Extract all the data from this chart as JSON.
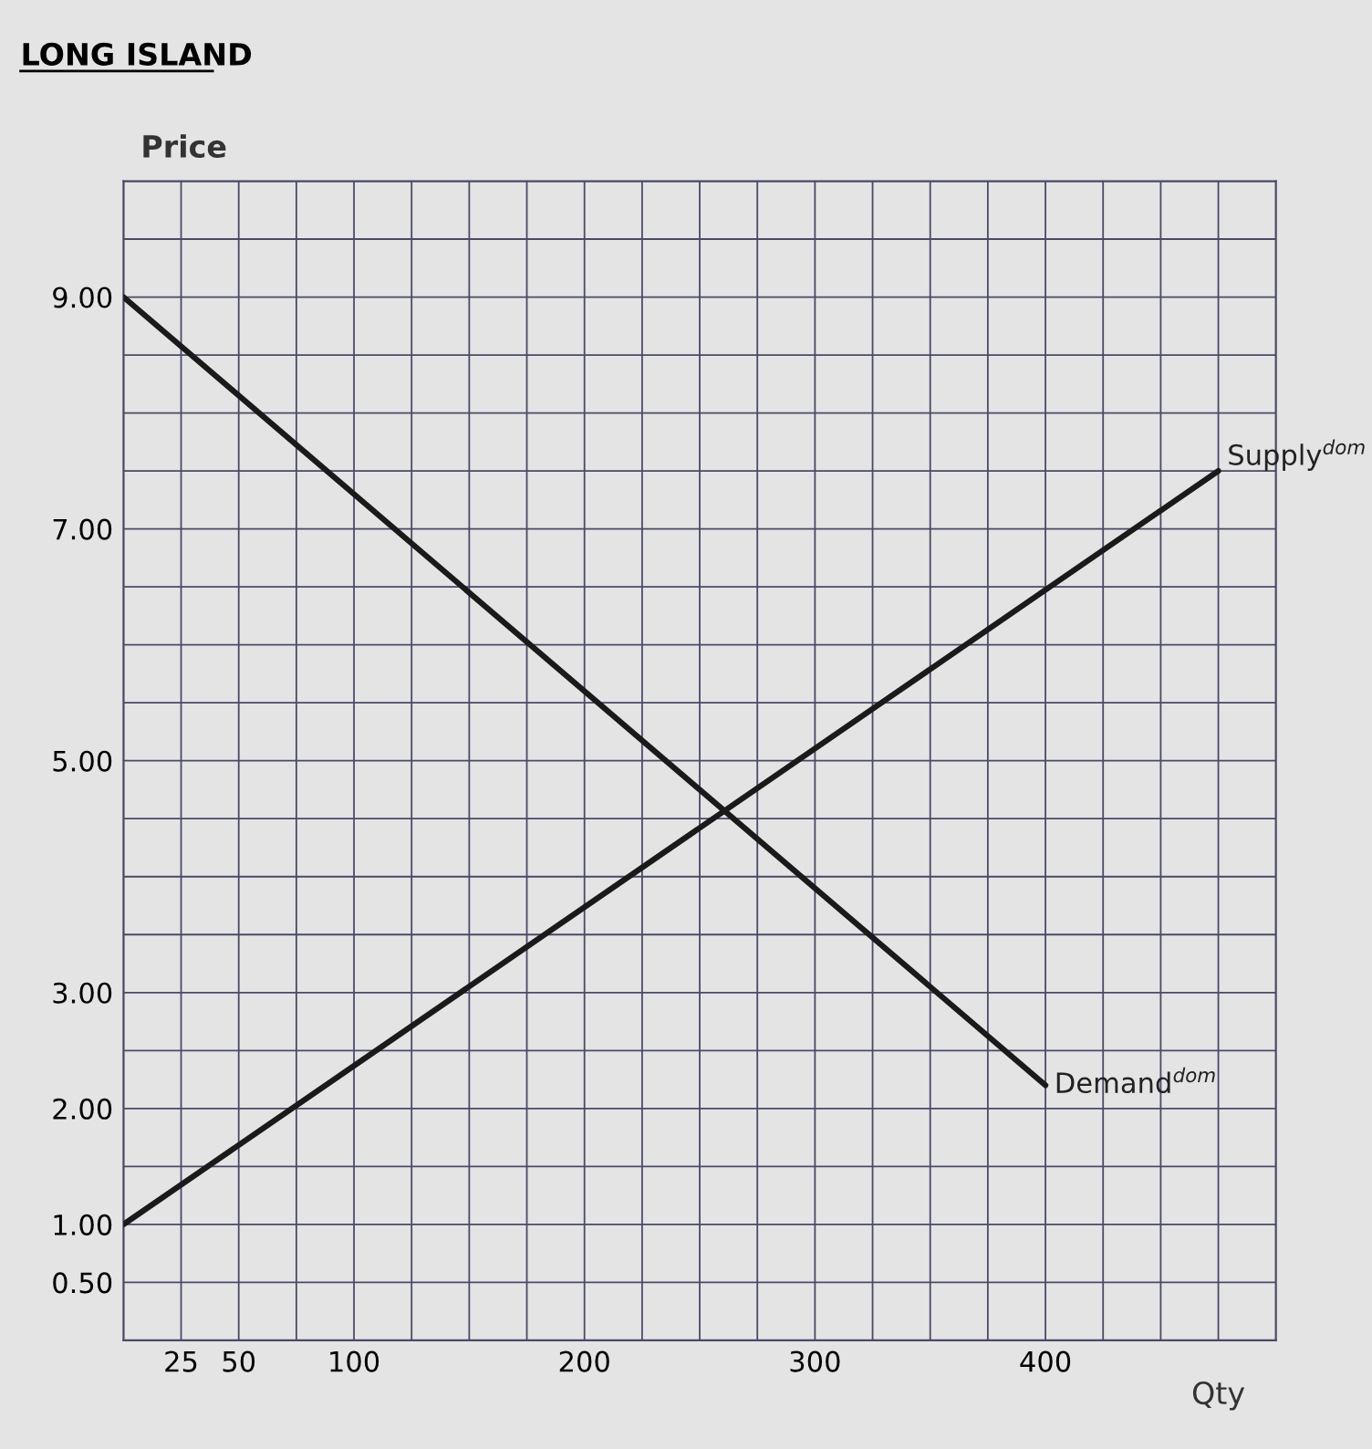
{
  "chart_data": {
    "type": "line",
    "title": "LONG ISLAND",
    "xlabel": "Qty",
    "ylabel": "Price",
    "series": [
      {
        "name": "Demand$^{dom}$",
        "color": "#1a1a1a",
        "x": [
          0,
          400
        ],
        "values": [
          9.0,
          2.2
        ]
      },
      {
        "name": "Supply$^{dom}$",
        "color": "#1a1a1a",
        "x": [
          0,
          475
        ],
        "values": [
          1.0,
          7.5
        ]
      }
    ],
    "xlim": [
      0,
      500
    ],
    "ylim": [
      0,
      10
    ],
    "xticks": [
      {
        "value": 0,
        "label": null
      },
      25,
      50,
      {
        "value": 75,
        "label": null
      },
      100,
      {
        "value": 125,
        "label": null
      },
      {
        "value": 150,
        "label": null
      },
      {
        "value": 175,
        "label": null
      },
      200,
      {
        "value": 225,
        "label": null
      },
      {
        "value": 250,
        "label": null
      },
      {
        "value": 275,
        "label": null
      },
      300,
      {
        "value": 325,
        "label": null
      },
      {
        "value": 350,
        "label": null
      },
      {
        "value": 375,
        "label": null
      },
      400,
      {
        "value": 425,
        "label": null
      },
      {
        "value": 450,
        "label": null
      },
      {
        "value": 475,
        "label": null
      },
      {
        "value": 500,
        "label": null
      }
    ],
    "yticks": [
      {
        "value": 0,
        "label": null
      },
      {
        "value": 0.5,
        "label": "0.50"
      },
      {
        "value": 1,
        "label": "1.00"
      },
      {
        "value": 1.5,
        "label": null
      },
      {
        "value": 2,
        "label": "2.00"
      },
      {
        "value": 2.5,
        "label": null
      },
      {
        "value": 3,
        "label": "3.00"
      },
      {
        "value": 3.5,
        "label": null
      },
      {
        "value": 4,
        "label": null
      },
      {
        "value": 4.5,
        "label": null
      },
      {
        "value": 5,
        "label": "5.00"
      },
      {
        "value": 5.5,
        "label": null
      },
      {
        "value": 6,
        "label": null
      },
      {
        "value": 6.5,
        "label": null
      },
      {
        "value": 7,
        "label": "7.00"
      },
      {
        "value": 7.5,
        "label": null
      },
      {
        "value": 8,
        "label": null
      },
      {
        "value": 8.5,
        "label": null
      },
      {
        "value": 9,
        "label": "9.00"
      },
      {
        "value": 9.5,
        "label": null
      },
      {
        "value": 10,
        "label": null
      }
    ],
    "grid": true,
    "legend": false,
    "marker": "none",
    "line_style": "solid"
  }
}
